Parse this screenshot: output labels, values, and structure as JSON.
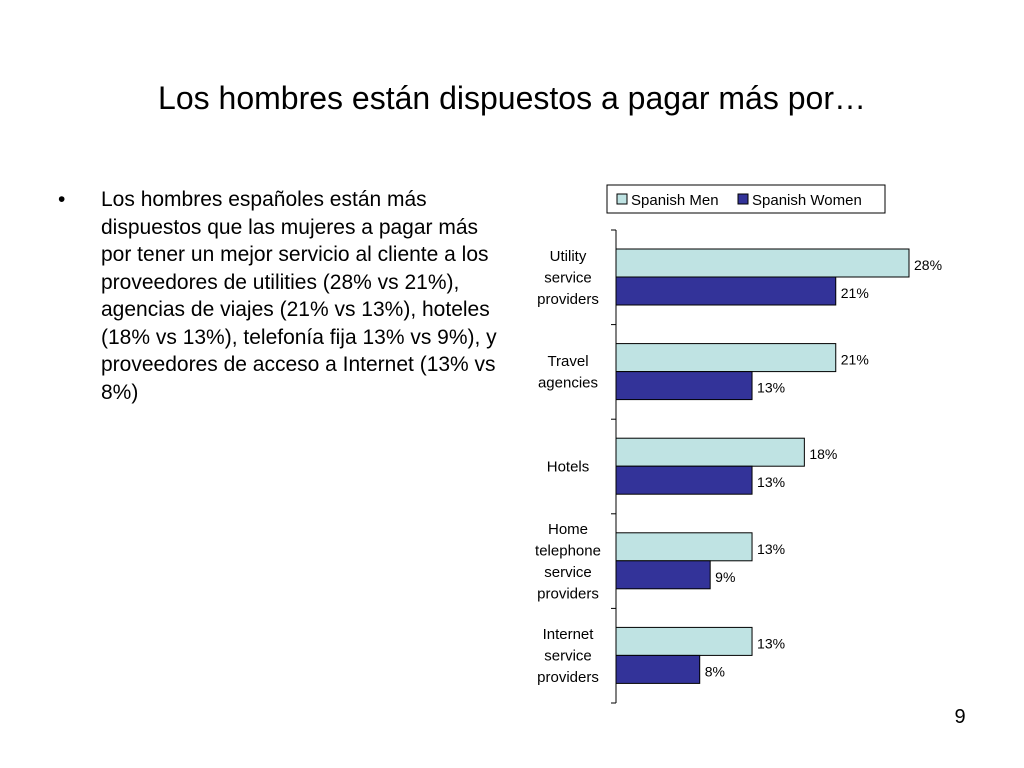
{
  "slide": {
    "title": "Los hombres están dispuestos a pagar más por…",
    "bullet_marker": "•",
    "bullet_text": "Los hombres españoles están más dispuestos que las mujeres a pagar más por tener un mejor servicio al cliente a los proveedores de utilities (28% vs 21%), agencias de viajes (21% vs 13%), hoteles (18% vs 13%), telefonía fija 13% vs 9%), y proveedores de acceso a Internet (13% vs 8%)",
    "page_number": "9"
  },
  "chart_data": {
    "type": "bar",
    "orientation": "horizontal",
    "categories": [
      [
        "Utility",
        "service",
        "providers"
      ],
      [
        "Travel",
        "agencies"
      ],
      [
        "Hotels"
      ],
      [
        "Home",
        "telephone",
        "service",
        "providers"
      ],
      [
        "Internet",
        "service",
        "providers"
      ]
    ],
    "series": [
      {
        "name": "Spanish Men",
        "values": [
          28,
          21,
          18,
          13,
          13
        ],
        "labels": [
          "28%",
          "21%",
          "18%",
          "13%",
          "13%"
        ],
        "color": "#bfe3e3"
      },
      {
        "name": "Spanish Women",
        "values": [
          21,
          13,
          13,
          9,
          8
        ],
        "labels": [
          "21%",
          "13%",
          "13%",
          "9%",
          "8%"
        ],
        "color": "#333399"
      }
    ],
    "xlim": [
      0,
      28
    ],
    "legend_position": "top",
    "grid": false
  }
}
